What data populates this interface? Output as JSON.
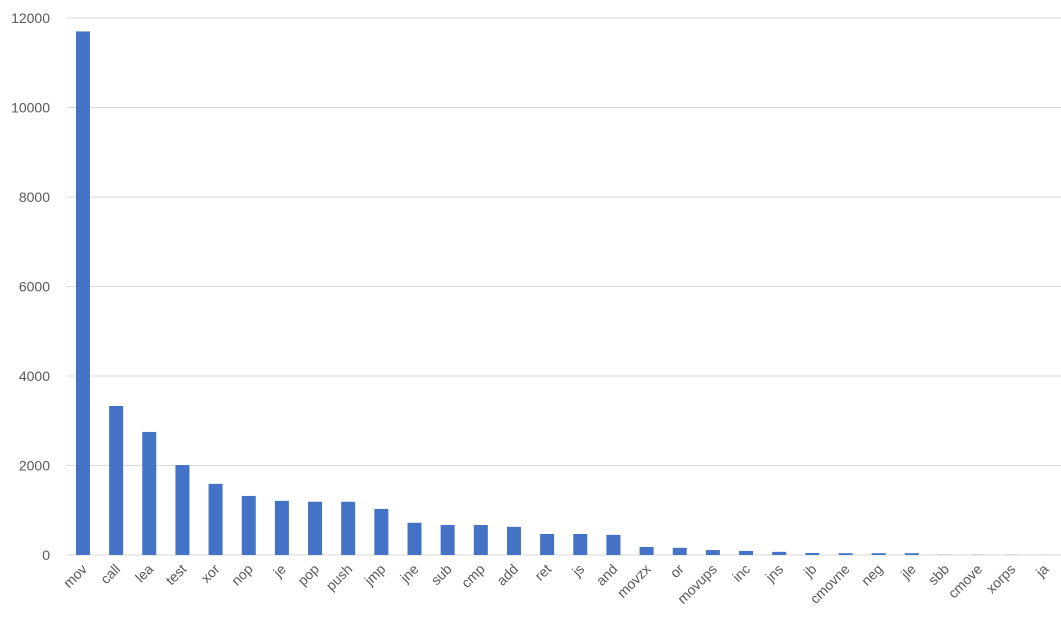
{
  "chart_data": {
    "type": "bar",
    "categories": [
      "mov",
      "call",
      "lea",
      "test",
      "xor",
      "nop",
      "je",
      "pop",
      "push",
      "jmp",
      "jne",
      "sub",
      "cmp",
      "add",
      "ret",
      "js",
      "and",
      "movzx",
      "or",
      "movups",
      "inc",
      "jns",
      "jb",
      "cmovne",
      "neg",
      "jle",
      "sbb",
      "cmove",
      "xorps",
      "ja"
    ],
    "values": [
      11700,
      3330,
      2750,
      2010,
      1590,
      1320,
      1210,
      1190,
      1190,
      1030,
      720,
      670,
      670,
      630,
      470,
      470,
      450,
      180,
      160,
      110,
      90,
      70,
      45,
      40,
      40,
      40,
      5,
      5,
      3,
      2
    ],
    "color": "#4472c4",
    "ylim": [
      0,
      12000
    ],
    "yticks": [
      0,
      2000,
      4000,
      6000,
      8000,
      10000,
      12000
    ],
    "grid": true
  }
}
